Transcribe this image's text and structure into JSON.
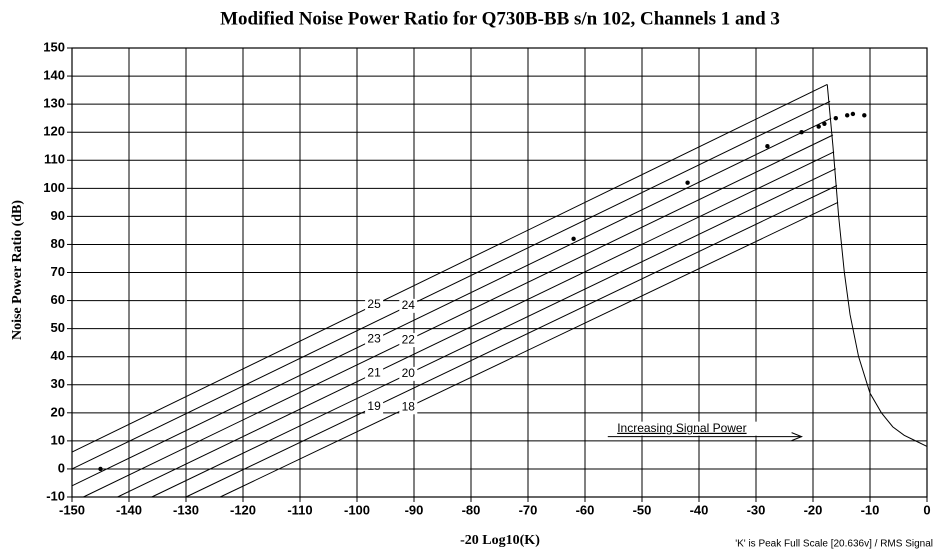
{
  "chart_data": {
    "type": "line",
    "title": "Modified Noise Power Ratio for Q730B-BB s/n 102, Channels 1 and 3",
    "x_label": "-20 Log10(K)",
    "y_label": "Noise Power Ratio (dB)",
    "note": "'K' is Peak Full Scale [20.636v] / RMS Signal",
    "annotation": "Increasing Signal Power",
    "xlim": [
      -150,
      0
    ],
    "ylim": [
      -10,
      150
    ],
    "xticks": [
      -150,
      -140,
      -130,
      -120,
      -110,
      -100,
      -90,
      -80,
      -70,
      -60,
      -50,
      -40,
      -30,
      -20,
      -10,
      0
    ],
    "yticks": [
      -10,
      0,
      10,
      20,
      30,
      40,
      50,
      60,
      70,
      80,
      90,
      100,
      110,
      120,
      130,
      140,
      150
    ],
    "grid": true,
    "color": "#000000",
    "series": [
      {
        "name": "25",
        "x": [
          -150,
          -17.5
        ],
        "values": [
          6,
          137
        ]
      },
      {
        "name": "24",
        "x": [
          -150,
          -17
        ],
        "values": [
          0,
          131
        ]
      },
      {
        "name": "23",
        "x": [
          -150,
          -16.8
        ],
        "values": [
          -6,
          125
        ]
      },
      {
        "name": "22",
        "x": [
          -148,
          -16.5
        ],
        "values": [
          -10,
          119
        ]
      },
      {
        "name": "21",
        "x": [
          -142,
          -16.3
        ],
        "values": [
          -10,
          113
        ]
      },
      {
        "name": "20",
        "x": [
          -136,
          -16
        ],
        "values": [
          -10,
          107
        ]
      },
      {
        "name": "19",
        "x": [
          -130,
          -15.8
        ],
        "values": [
          -10,
          101
        ]
      },
      {
        "name": "18",
        "x": [
          -124,
          -15.6
        ],
        "values": [
          -10,
          95
        ]
      }
    ],
    "rolloff": {
      "x": [
        -17.5,
        -16.5,
        -15.5,
        -14.5,
        -13.5,
        -12,
        -10,
        -8,
        -6,
        -4,
        -2,
        0
      ],
      "values": [
        137,
        115,
        90,
        70,
        55,
        40,
        27,
        20,
        15,
        12,
        10,
        8
      ]
    },
    "points": {
      "x": [
        -145,
        -62,
        -42,
        -28,
        -22,
        -19,
        -18,
        -16,
        -14,
        -13,
        -11
      ],
      "values": [
        0,
        82,
        102,
        115,
        120,
        122,
        123,
        125,
        126,
        126.5,
        126
      ]
    }
  }
}
